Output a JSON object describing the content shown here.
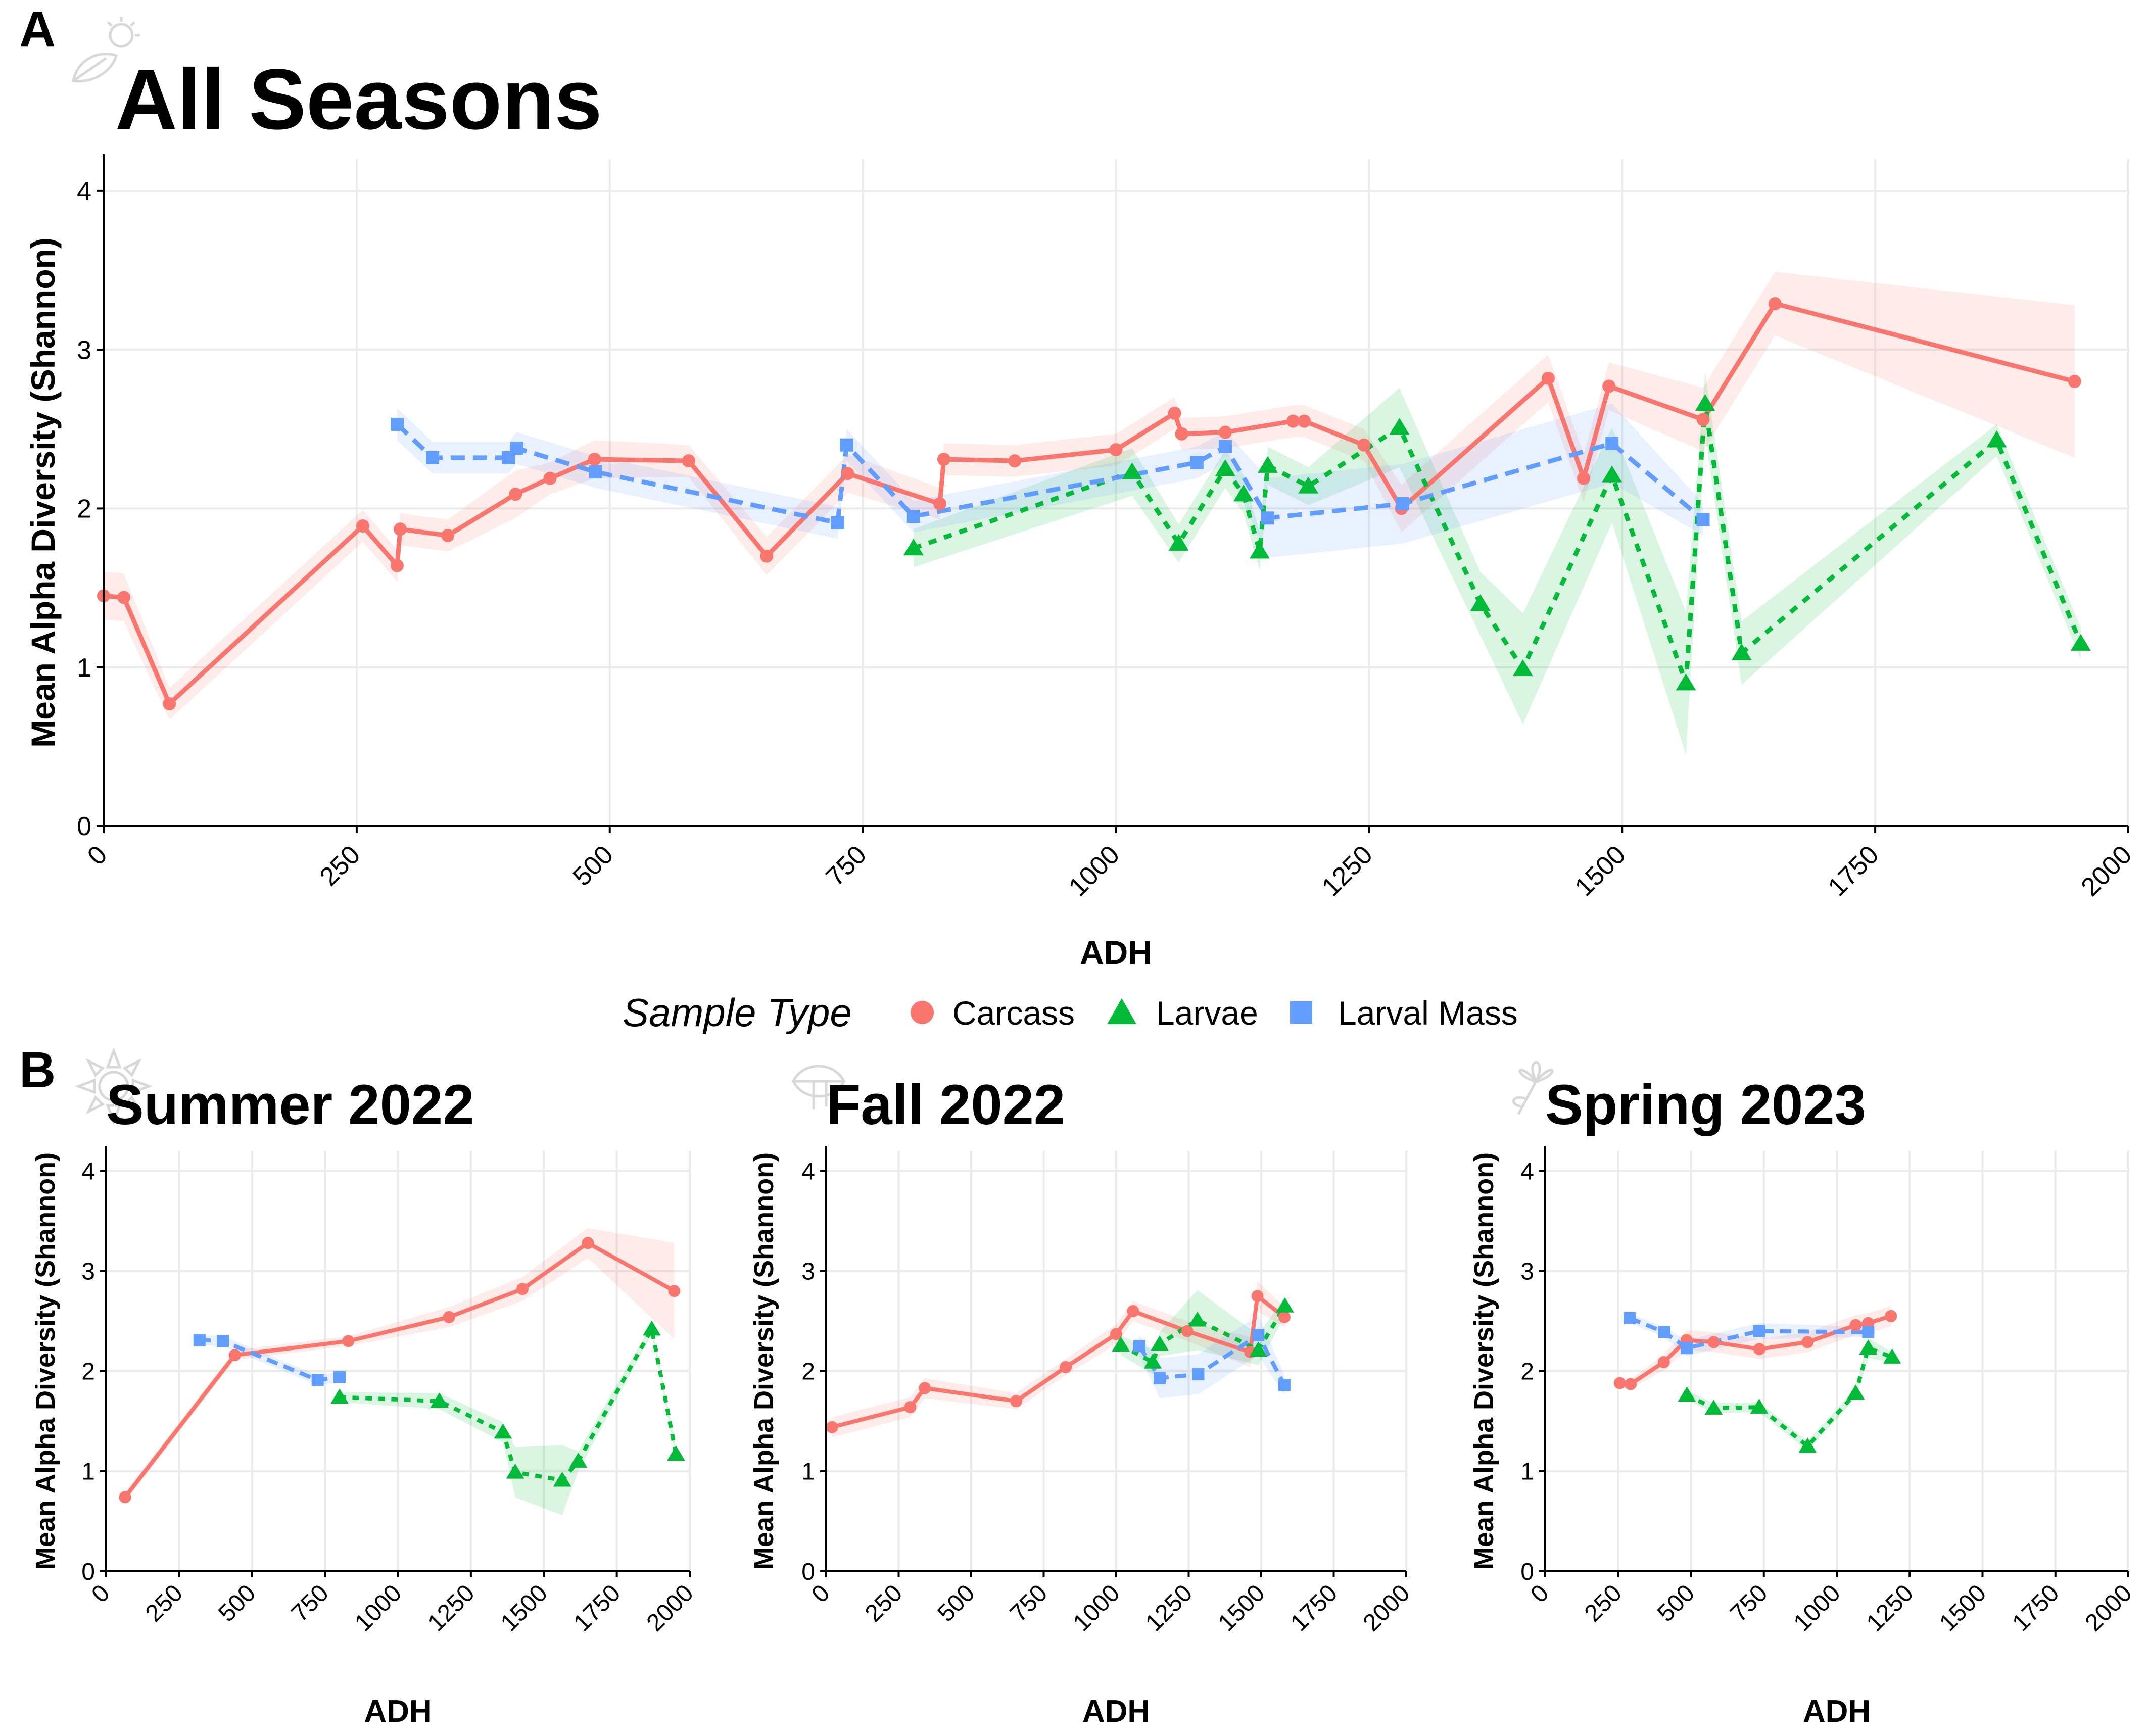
{
  "panel_tags": {
    "top": "A",
    "bottom": "B"
  },
  "legend": {
    "title": "Sample Type",
    "entries": [
      {
        "label": "Carcass",
        "shape": "circle",
        "color": "#F8766D"
      },
      {
        "label": "Larvae",
        "shape": "triangle",
        "color": "#00BA38"
      },
      {
        "label": "Larval Mass",
        "shape": "square",
        "color": "#619CFF"
      }
    ]
  },
  "season_icons": [
    "sun-leaf-icon",
    "sun-icon",
    "leaf-icon",
    "flower-icon"
  ],
  "chart_data": [
    {
      "id": "all",
      "type": "line",
      "title": "All Seasons",
      "xlabel": "ADH",
      "ylabel": "Mean Alpha Diversity (Shannon)",
      "xlim": [
        0,
        2000
      ],
      "ylim": [
        0,
        4.2
      ],
      "xticks": [
        0,
        250,
        500,
        750,
        1000,
        1250,
        1500,
        1750,
        2000
      ],
      "yticks": [
        0,
        1,
        2,
        3,
        4
      ],
      "grid": true,
      "series": [
        {
          "name": "Carcass",
          "color": "#F8766D",
          "dash": "solid",
          "shape": "circle",
          "points": [
            [
              0,
              1.45
            ],
            [
              20,
              1.44
            ],
            [
              65,
              0.77
            ],
            [
              256,
              1.89
            ],
            [
              290,
              1.64
            ],
            [
              293,
              1.87
            ],
            [
              340,
              1.83
            ],
            [
              407,
              2.09
            ],
            [
              441,
              2.19
            ],
            [
              485,
              2.31
            ],
            [
              578,
              2.3
            ],
            [
              655,
              1.7
            ],
            [
              735,
              2.22
            ],
            [
              826,
              2.03
            ],
            [
              830,
              2.31
            ],
            [
              900,
              2.3
            ],
            [
              1000,
              2.37
            ],
            [
              1058,
              2.6
            ],
            [
              1065,
              2.47
            ],
            [
              1108,
              2.48
            ],
            [
              1175,
              2.55
            ],
            [
              1186,
              2.55
            ],
            [
              1245,
              2.4
            ],
            [
              1282,
              2.0
            ],
            [
              1427,
              2.82
            ],
            [
              1462,
              2.19
            ],
            [
              1487,
              2.77
            ],
            [
              1580,
              2.56
            ],
            [
              1651,
              3.29
            ],
            [
              1947,
              2.8
            ]
          ],
          "band": [
            0.15,
            0.15,
            0.1,
            0.1,
            0.1,
            0.1,
            0.1,
            0.15,
            0.1,
            0.12,
            0.1,
            0.12,
            0.12,
            0.1,
            0.1,
            0.1,
            0.1,
            0.1,
            0.1,
            0.1,
            0.1,
            0.1,
            0.1,
            0.15,
            0.15,
            0.15,
            0.15,
            0.2,
            0.2,
            0.48
          ]
        },
        {
          "name": "Larvae",
          "color": "#00BA38",
          "dash": "8,8",
          "shape": "triangle",
          "points": [
            [
              800,
              1.75
            ],
            [
              1016,
              2.23
            ],
            [
              1062,
              1.78
            ],
            [
              1108,
              2.25
            ],
            [
              1126,
              2.09
            ],
            [
              1142,
              1.73
            ],
            [
              1150,
              2.27
            ],
            [
              1190,
              2.14
            ],
            [
              1280,
              2.51
            ],
            [
              1360,
              1.4
            ],
            [
              1402,
              0.99
            ],
            [
              1490,
              2.21
            ],
            [
              1563,
              0.9
            ],
            [
              1582,
              2.66
            ],
            [
              1618,
              1.09
            ],
            [
              1870,
              2.43
            ],
            [
              1953,
              1.15
            ]
          ],
          "band": [
            0.12,
            0.15,
            0.12,
            0.12,
            0.12,
            0.12,
            0.12,
            0.12,
            0.25,
            0.2,
            0.35,
            0.3,
            0.45,
            0.2,
            0.2,
            0.1,
            0.1
          ]
        },
        {
          "name": "Larval Mass",
          "color": "#619CFF",
          "dash": "14,8",
          "shape": "square",
          "points": [
            [
              290,
              2.53
            ],
            [
              325,
              2.32
            ],
            [
              400,
              2.32
            ],
            [
              408,
              2.38
            ],
            [
              486,
              2.23
            ],
            [
              725,
              1.91
            ],
            [
              734,
              2.4
            ],
            [
              800,
              1.95
            ],
            [
              1080,
              2.29
            ],
            [
              1108,
              2.39
            ],
            [
              1150,
              1.94
            ],
            [
              1283,
              2.03
            ],
            [
              1490,
              2.41
            ],
            [
              1580,
              1.93
            ]
          ],
          "band": [
            0.1,
            0.1,
            0.1,
            0.1,
            0.1,
            0.1,
            0.1,
            0.1,
            0.1,
            0.1,
            0.25,
            0.25,
            0.25,
            0.1
          ]
        }
      ]
    },
    {
      "id": "summer",
      "type": "line",
      "title": "Summer 2022",
      "xlabel": "ADH",
      "ylabel": "Mean Alpha Diversity (Shannon)",
      "xlim": [
        0,
        2000
      ],
      "ylim": [
        0,
        4.2
      ],
      "xticks": [
        0,
        250,
        500,
        750,
        1000,
        1250,
        1500,
        1750,
        2000
      ],
      "yticks": [
        0,
        1,
        2,
        3,
        4
      ],
      "grid": true,
      "series": [
        {
          "name": "Carcass",
          "color": "#F8766D",
          "dash": "solid",
          "shape": "circle",
          "points": [
            [
              65,
              0.74
            ],
            [
              441,
              2.16
            ],
            [
              830,
              2.3
            ],
            [
              1175,
              2.54
            ],
            [
              1427,
              2.82
            ],
            [
              1651,
              3.28
            ],
            [
              1947,
              2.8
            ]
          ],
          "band": [
            0.05,
            0.05,
            0.05,
            0.1,
            0.12,
            0.15,
            0.48
          ]
        },
        {
          "name": "Larvae",
          "color": "#00BA38",
          "dash": "8,8",
          "shape": "triangle",
          "points": [
            [
              800,
              1.74
            ],
            [
              1142,
              1.7
            ],
            [
              1360,
              1.39
            ],
            [
              1402,
              0.99
            ],
            [
              1563,
              0.91
            ],
            [
              1618,
              1.1
            ],
            [
              1870,
              2.42
            ],
            [
              1953,
              1.17
            ]
          ],
          "band": [
            0.05,
            0.08,
            0.1,
            0.25,
            0.35,
            0.1,
            0.05,
            0.05
          ]
        },
        {
          "name": "Larval Mass",
          "color": "#619CFF",
          "dash": "14,8",
          "shape": "square",
          "points": [
            [
              320,
              2.31
            ],
            [
              400,
              2.3
            ],
            [
              725,
              1.91
            ],
            [
              800,
              1.94
            ]
          ],
          "band": [
            0.05,
            0.05,
            0.05,
            0.05
          ]
        }
      ]
    },
    {
      "id": "fall",
      "type": "line",
      "title": "Fall 2022",
      "xlabel": "ADH",
      "ylabel": "Mean Alpha Diversity (Shannon)",
      "xlim": [
        0,
        2000
      ],
      "ylim": [
        0,
        4.2
      ],
      "xticks": [
        0,
        250,
        500,
        750,
        1000,
        1250,
        1500,
        1750,
        2000
      ],
      "yticks": [
        0,
        1,
        2,
        3,
        4
      ],
      "grid": true,
      "series": [
        {
          "name": "Carcass",
          "color": "#F8766D",
          "dash": "solid",
          "shape": "circle",
          "points": [
            [
              20,
              1.44
            ],
            [
              290,
              1.64
            ],
            [
              340,
              1.83
            ],
            [
              655,
              1.7
            ],
            [
              826,
              2.04
            ],
            [
              1000,
              2.37
            ],
            [
              1058,
              2.6
            ],
            [
              1245,
              2.4
            ],
            [
              1462,
              2.19
            ],
            [
              1487,
              2.75
            ],
            [
              1580,
              2.54
            ]
          ],
          "band": [
            0.1,
            0.1,
            0.1,
            0.08,
            0.08,
            0.1,
            0.1,
            0.1,
            0.15,
            0.15,
            0.1
          ]
        },
        {
          "name": "Larvae",
          "color": "#00BA38",
          "dash": "8,8",
          "shape": "triangle",
          "points": [
            [
              1016,
              2.26
            ],
            [
              1126,
              2.09
            ],
            [
              1150,
              2.27
            ],
            [
              1280,
              2.51
            ],
            [
              1490,
              2.21
            ],
            [
              1582,
              2.65
            ]
          ],
          "band": [
            0.1,
            0.12,
            0.12,
            0.3,
            0.15,
            0.1
          ]
        },
        {
          "name": "Larval Mass",
          "color": "#619CFF",
          "dash": "14,8",
          "shape": "square",
          "points": [
            [
              1080,
              2.25
            ],
            [
              1150,
              1.93
            ],
            [
              1283,
              1.97
            ],
            [
              1490,
              2.36
            ],
            [
              1580,
              1.86
            ]
          ],
          "band": [
            0.1,
            0.2,
            0.2,
            0.2,
            0.1
          ]
        }
      ]
    },
    {
      "id": "spring",
      "type": "line",
      "title": "Spring 2023",
      "xlabel": "ADH",
      "ylabel": "Mean Alpha Diversity (Shannon)",
      "xlim": [
        0,
        2000
      ],
      "ylim": [
        0,
        4.2
      ],
      "xticks": [
        0,
        250,
        500,
        750,
        1000,
        1250,
        1500,
        1750,
        2000
      ],
      "yticks": [
        0,
        1,
        2,
        3,
        4
      ],
      "grid": true,
      "series": [
        {
          "name": "Carcass",
          "color": "#F8766D",
          "dash": "solid",
          "shape": "circle",
          "points": [
            [
              256,
              1.88
            ],
            [
              293,
              1.87
            ],
            [
              407,
              2.09
            ],
            [
              485,
              2.31
            ],
            [
              578,
              2.29
            ],
            [
              735,
              2.22
            ],
            [
              900,
              2.29
            ],
            [
              1065,
              2.46
            ],
            [
              1108,
              2.48
            ],
            [
              1186,
              2.55
            ]
          ],
          "band": [
            0.05,
            0.05,
            0.08,
            0.1,
            0.1,
            0.1,
            0.1,
            0.1,
            0.1,
            0.1
          ]
        },
        {
          "name": "Larvae",
          "color": "#00BA38",
          "dash": "8,8",
          "shape": "triangle",
          "points": [
            [
              486,
              1.76
            ],
            [
              578,
              1.63
            ],
            [
              734,
              1.64
            ],
            [
              900,
              1.25
            ],
            [
              1065,
              1.78
            ],
            [
              1108,
              2.23
            ],
            [
              1190,
              2.14
            ]
          ],
          "band": [
            0.05,
            0.05,
            0.05,
            0.05,
            0.05,
            0.1,
            0.05
          ]
        },
        {
          "name": "Larval Mass",
          "color": "#619CFF",
          "dash": "14,8",
          "shape": "square",
          "points": [
            [
              290,
              2.53
            ],
            [
              408,
              2.39
            ],
            [
              486,
              2.23
            ],
            [
              734,
              2.4
            ],
            [
              1108,
              2.39
            ]
          ],
          "band": [
            0.05,
            0.05,
            0.08,
            0.08,
            0.05
          ]
        }
      ]
    }
  ]
}
